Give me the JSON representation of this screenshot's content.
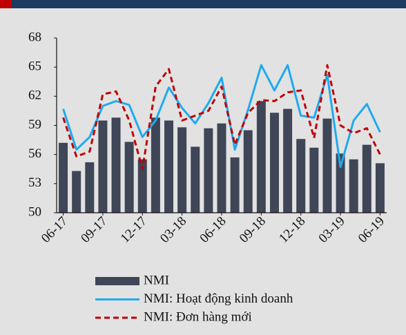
{
  "chart_data": {
    "type": "bar-line",
    "categories": [
      "06-17",
      null,
      null,
      "09-17",
      null,
      null,
      "12-17",
      null,
      null,
      "03-18",
      null,
      null,
      "06-18",
      null,
      null,
      "09-18",
      null,
      null,
      "12-18",
      null,
      null,
      "03-19",
      null,
      null,
      "06-19"
    ],
    "series": [
      {
        "name": "NMI",
        "type": "bar",
        "color": "#3e4657",
        "values": [
          57.2,
          54.3,
          55.2,
          59.5,
          59.8,
          57.3,
          55.5,
          59.8,
          59.5,
          58.8,
          56.8,
          58.7,
          59.2,
          55.7,
          58.5,
          61.5,
          60.3,
          60.7,
          57.6,
          56.7,
          59.7,
          56.1,
          55.5,
          57.0,
          55.1
        ]
      },
      {
        "name": "NMI: Hoạt động kinh doanh",
        "type": "line",
        "color": "#1eaaf1",
        "values": [
          60.7,
          56.5,
          57.8,
          61.0,
          61.5,
          61.1,
          57.8,
          59.5,
          62.9,
          60.8,
          59.2,
          61.3,
          63.9,
          56.5,
          60.6,
          65.2,
          62.6,
          65.2,
          60.0,
          59.8,
          64.2,
          54.7,
          59.5,
          61.2,
          58.3
        ]
      },
      {
        "name": "NMI: Đơn hàng mới",
        "type": "line",
        "dashed": true,
        "color": "#c00000",
        "values": [
          59.8,
          55.8,
          56.3,
          62.2,
          62.5,
          59.5,
          54.5,
          63.0,
          64.8,
          59.5,
          60.0,
          60.5,
          63.0,
          57.0,
          60.3,
          61.6,
          61.5,
          62.4,
          62.6,
          57.7,
          65.2,
          59.0,
          58.2,
          58.7,
          56.0
        ]
      }
    ],
    "ylim": [
      50,
      68
    ],
    "yticks": [
      50,
      53,
      56,
      59,
      62,
      65,
      68
    ],
    "grid": false
  }
}
